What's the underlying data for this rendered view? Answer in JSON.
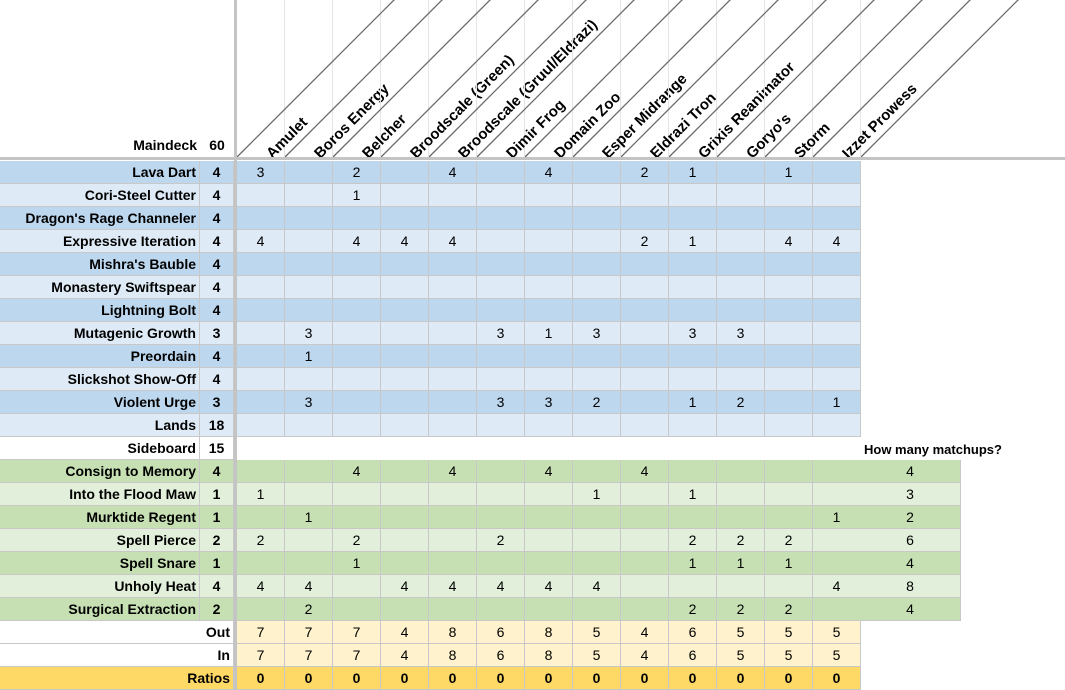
{
  "header": {
    "maindeck_label": "Maindeck",
    "maindeck_count": "60",
    "matchups": [
      "Amulet",
      "Boros Energy",
      "Belcher",
      "Broodscale (Green)",
      "Broodscale (Gruul/Eldrazi)",
      "Dimir Frog",
      "Domain Zoo",
      "Esper Midrange",
      "Eldrazi Tron",
      "Grixis Reanimator",
      "Goryo's",
      "Storm",
      "Izzet Prowess"
    ]
  },
  "maindeck": [
    {
      "name": "Lava Dart",
      "count": "4",
      "values": [
        "3",
        "",
        "2",
        "",
        "4",
        "",
        "4",
        "",
        "2",
        "1",
        "",
        "1",
        ""
      ]
    },
    {
      "name": "Cori-Steel Cutter",
      "count": "4",
      "values": [
        "",
        "",
        "1",
        "",
        "",
        "",
        "",
        "",
        "",
        "",
        "",
        "",
        ""
      ]
    },
    {
      "name": "Dragon's Rage Channeler",
      "count": "4",
      "values": [
        "",
        "",
        "",
        "",
        "",
        "",
        "",
        "",
        "",
        "",
        "",
        "",
        ""
      ]
    },
    {
      "name": "Expressive Iteration",
      "count": "4",
      "values": [
        "4",
        "",
        "4",
        "4",
        "4",
        "",
        "",
        "",
        "2",
        "1",
        "",
        "4",
        "4"
      ]
    },
    {
      "name": "Mishra's Bauble",
      "count": "4",
      "values": [
        "",
        "",
        "",
        "",
        "",
        "",
        "",
        "",
        "",
        "",
        "",
        "",
        ""
      ]
    },
    {
      "name": "Monastery Swiftspear",
      "count": "4",
      "values": [
        "",
        "",
        "",
        "",
        "",
        "",
        "",
        "",
        "",
        "",
        "",
        "",
        ""
      ]
    },
    {
      "name": "Lightning Bolt",
      "count": "4",
      "values": [
        "",
        "",
        "",
        "",
        "",
        "",
        "",
        "",
        "",
        "",
        "",
        "",
        ""
      ]
    },
    {
      "name": "Mutagenic Growth",
      "count": "3",
      "values": [
        "",
        "3",
        "",
        "",
        "",
        "3",
        "1",
        "3",
        "",
        "3",
        "3",
        "",
        ""
      ]
    },
    {
      "name": "Preordain",
      "count": "4",
      "values": [
        "",
        "1",
        "",
        "",
        "",
        "",
        "",
        "",
        "",
        "",
        "",
        "",
        ""
      ]
    },
    {
      "name": "Slickshot Show-Off",
      "count": "4",
      "values": [
        "",
        "",
        "",
        "",
        "",
        "",
        "",
        "",
        "",
        "",
        "",
        "",
        ""
      ]
    },
    {
      "name": "Violent Urge",
      "count": "3",
      "values": [
        "",
        "3",
        "",
        "",
        "",
        "3",
        "3",
        "2",
        "",
        "1",
        "2",
        "",
        "1"
      ]
    },
    {
      "name": "Lands",
      "count": "18",
      "values": [
        "",
        "",
        "",
        "",
        "",
        "",
        "",
        "",
        "",
        "",
        "",
        "",
        ""
      ]
    }
  ],
  "sideboard_label": "Sideboard",
  "sideboard_count": "15",
  "how_many_label": "How many matchups?",
  "sideboard": [
    {
      "name": "Consign to Memory",
      "count": "4",
      "values": [
        "",
        "",
        "4",
        "",
        "4",
        "",
        "4",
        "",
        "4",
        "",
        "",
        "",
        ""
      ],
      "matchups": "4"
    },
    {
      "name": "Into the Flood Maw",
      "count": "1",
      "values": [
        "1",
        "",
        "",
        "",
        "",
        "",
        "",
        "1",
        "",
        "1",
        "",
        "",
        ""
      ],
      "matchups": "3"
    },
    {
      "name": "Murktide Regent",
      "count": "1",
      "values": [
        "",
        "1",
        "",
        "",
        "",
        "",
        "",
        "",
        "",
        "",
        "",
        "",
        "1"
      ],
      "matchups": "2"
    },
    {
      "name": "Spell Pierce",
      "count": "2",
      "values": [
        "2",
        "",
        "2",
        "",
        "",
        "2",
        "",
        "",
        "",
        "2",
        "2",
        "2",
        ""
      ],
      "matchups": "6"
    },
    {
      "name": "Spell Snare",
      "count": "1",
      "values": [
        "",
        "",
        "1",
        "",
        "",
        "",
        "",
        "",
        "",
        "1",
        "1",
        "1",
        ""
      ],
      "matchups": "4"
    },
    {
      "name": "Unholy Heat",
      "count": "4",
      "values": [
        "4",
        "4",
        "",
        "4",
        "4",
        "4",
        "4",
        "4",
        "",
        "",
        "",
        "",
        "4"
      ],
      "matchups": "8"
    },
    {
      "name": "Surgical Extraction",
      "count": "2",
      "values": [
        "",
        "2",
        "",
        "",
        "",
        "",
        "",
        "",
        "",
        "2",
        "2",
        "2",
        ""
      ],
      "matchups": "4"
    }
  ],
  "summary": [
    {
      "name": "Out",
      "values": [
        "7",
        "7",
        "7",
        "4",
        "8",
        "6",
        "8",
        "5",
        "4",
        "6",
        "5",
        "5",
        "5"
      ]
    },
    {
      "name": "In",
      "values": [
        "7",
        "7",
        "7",
        "4",
        "8",
        "6",
        "8",
        "5",
        "4",
        "6",
        "5",
        "5",
        "5"
      ]
    },
    {
      "name": "Ratios",
      "values": [
        "0",
        "0",
        "0",
        "0",
        "0",
        "0",
        "0",
        "0",
        "0",
        "0",
        "0",
        "0",
        "0"
      ]
    }
  ],
  "colors": {
    "blue_dark": "#bdd7ee",
    "blue_light": "#deebf7",
    "green_dark": "#c6e0b4",
    "green_light": "#e2efda",
    "yellow_light": "#fff2cc",
    "yellow_dark": "#ffd966",
    "gridline": "#c8c8c8"
  }
}
